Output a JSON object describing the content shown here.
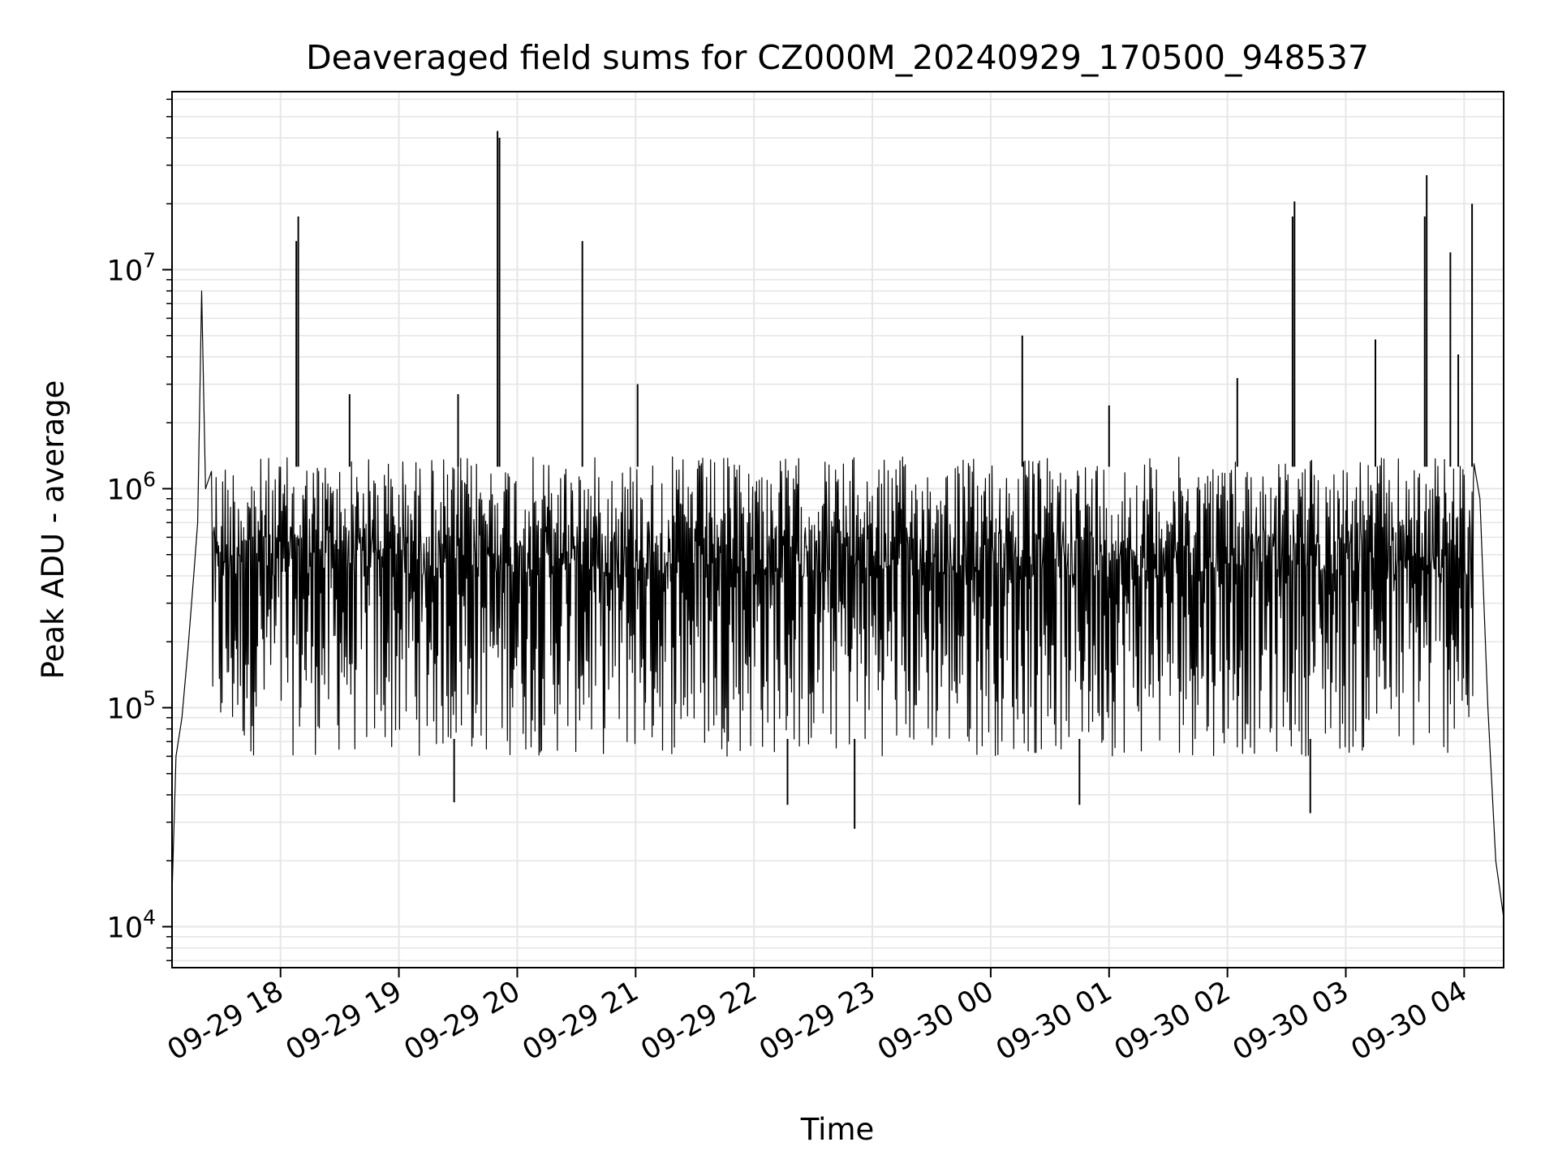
{
  "chart_data": {
    "type": "line",
    "title": "Deaveraged field sums for CZ000M_20240929_170500_948537",
    "xlabel": "Time",
    "ylabel": "Peak ADU - average",
    "y_scale": "log",
    "ylim": [
      6500,
      65000000
    ],
    "xlim": [
      "2024-09-29 17:05",
      "2024-09-30 04:20"
    ],
    "grid": true,
    "x_ticks": [
      {
        "t": "2024-09-29 18:00",
        "label": "09-29 18"
      },
      {
        "t": "2024-09-29 19:00",
        "label": "09-29 19"
      },
      {
        "t": "2024-09-29 20:00",
        "label": "09-29 20"
      },
      {
        "t": "2024-09-29 21:00",
        "label": "09-29 21"
      },
      {
        "t": "2024-09-29 22:00",
        "label": "09-29 22"
      },
      {
        "t": "2024-09-29 23:00",
        "label": "09-29 23"
      },
      {
        "t": "2024-09-30 00:00",
        "label": "09-30 00"
      },
      {
        "t": "2024-09-30 01:00",
        "label": "09-30 01"
      },
      {
        "t": "2024-09-30 02:00",
        "label": "09-30 02"
      },
      {
        "t": "2024-09-30 03:00",
        "label": "09-30 03"
      },
      {
        "t": "2024-09-30 04:00",
        "label": "09-30 04"
      }
    ],
    "y_ticks": [
      {
        "value": 10000,
        "base": "10",
        "exp": "4"
      },
      {
        "value": 100000,
        "base": "10",
        "exp": "5"
      },
      {
        "value": 1000000,
        "base": "10",
        "exp": "6"
      },
      {
        "value": 10000000,
        "base": "10",
        "exp": "7"
      }
    ],
    "series": [
      {
        "color": "#000000",
        "description": "dense oscillating series, roughly 6e4 to 1.4e6 baseline band",
        "band": {
          "low": 60000,
          "high": 1400000
        },
        "points": [
          {
            "t": "2024-09-29 17:05",
            "v": 14000
          },
          {
            "t": "2024-09-29 17:07",
            "v": 60000
          },
          {
            "t": "2024-09-29 17:10",
            "v": 90000
          },
          {
            "t": "2024-09-29 17:13",
            "v": 180000
          },
          {
            "t": "2024-09-29 17:16",
            "v": 400000
          },
          {
            "t": "2024-09-29 17:18",
            "v": 700000
          },
          {
            "t": "2024-09-29 17:20",
            "v": 8000000
          },
          {
            "t": "2024-09-29 17:22",
            "v": 1000000
          },
          {
            "t": "2024-09-29 17:25",
            "v": 1200000
          },
          {
            "t": "2024-09-30 04:05",
            "v": 1300000
          },
          {
            "t": "2024-09-30 04:08",
            "v": 900000
          },
          {
            "t": "2024-09-30 04:12",
            "v": 100000
          },
          {
            "t": "2024-09-30 04:16",
            "v": 20000
          },
          {
            "t": "2024-09-30 04:20",
            "v": 11000
          }
        ],
        "spikes": [
          {
            "t": "2024-09-29 18:09",
            "v": 17500000
          },
          {
            "t": "2024-09-29 18:08",
            "v": 13500000
          },
          {
            "t": "2024-09-29 19:50",
            "v": 43000000
          },
          {
            "t": "2024-09-29 19:51",
            "v": 40000000
          },
          {
            "t": "2024-09-29 20:33",
            "v": 13500000
          },
          {
            "t": "2024-09-29 21:01",
            "v": 3000000
          },
          {
            "t": "2024-09-30 00:16",
            "v": 5000000
          },
          {
            "t": "2024-09-30 02:34",
            "v": 20500000
          },
          {
            "t": "2024-09-30 02:33",
            "v": 17500000
          },
          {
            "t": "2024-09-30 03:41",
            "v": 27000000
          },
          {
            "t": "2024-09-30 03:40",
            "v": 17500000
          },
          {
            "t": "2024-09-30 03:53",
            "v": 12000000
          },
          {
            "t": "2024-09-30 04:04",
            "v": 20000000
          },
          {
            "t": "2024-09-29 18:35",
            "v": 2700000
          },
          {
            "t": "2024-09-29 19:30",
            "v": 2700000
          },
          {
            "t": "2024-09-30 01:00",
            "v": 2400000
          },
          {
            "t": "2024-09-30 02:05",
            "v": 3200000
          },
          {
            "t": "2024-09-30 03:15",
            "v": 4800000
          },
          {
            "t": "2024-09-30 03:57",
            "v": 4100000
          }
        ],
        "dips": [
          {
            "t": "2024-09-29 22:51",
            "v": 28000
          },
          {
            "t": "2024-09-30 02:42",
            "v": 33000
          },
          {
            "t": "2024-09-29 19:28",
            "v": 37000
          },
          {
            "t": "2024-09-30 00:45",
            "v": 36000
          },
          {
            "t": "2024-09-29 22:17",
            "v": 36000
          }
        ]
      }
    ]
  }
}
